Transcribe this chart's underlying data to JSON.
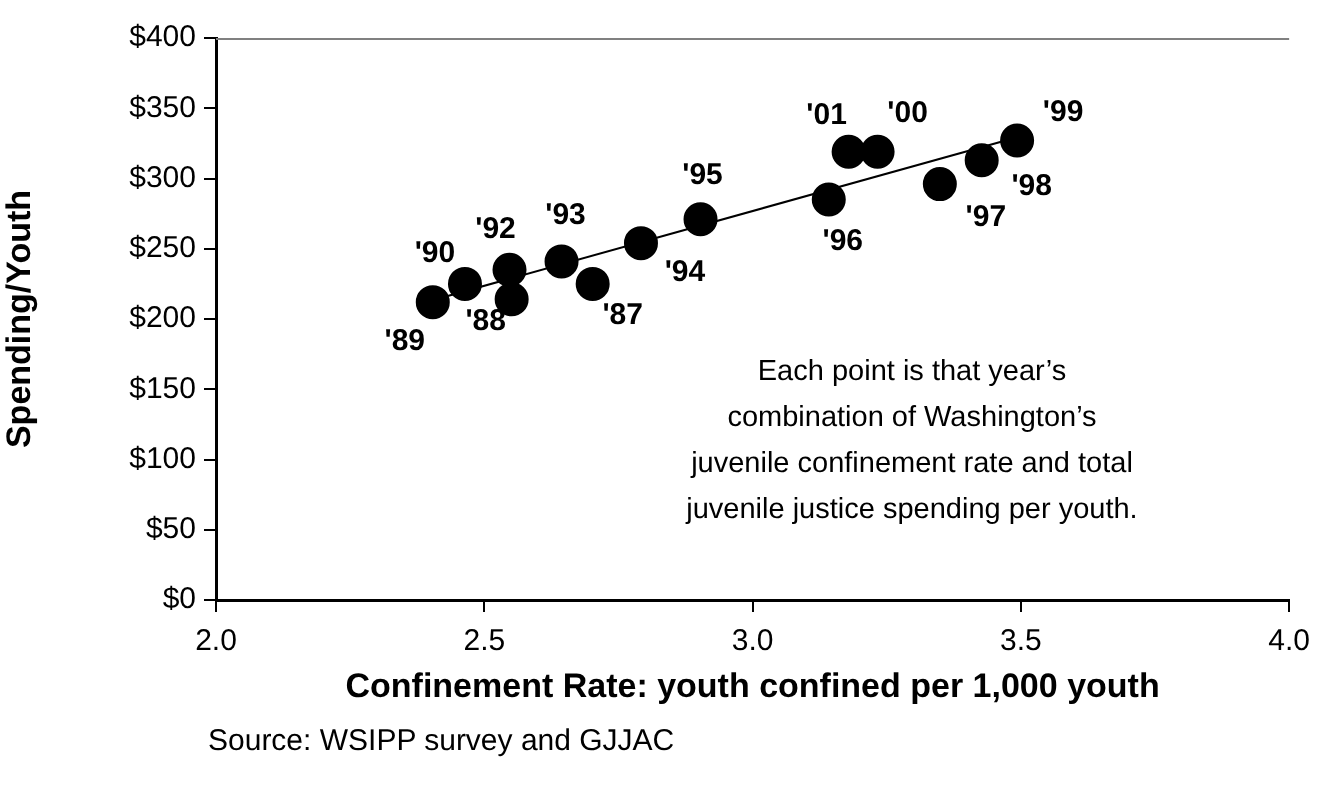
{
  "chart_data": {
    "type": "scatter",
    "xlabel": "Confinement Rate: youth confined per 1,000 youth",
    "ylabel": "Spending/Youth",
    "series": [
      {
        "color": "#000000",
        "marker": "circle",
        "x": [
          2.404,
          2.464,
          2.547,
          2.551,
          2.644,
          2.702,
          2.792,
          2.903,
          3.142,
          3.179,
          3.233,
          3.349,
          3.427,
          3.493
        ],
        "values": [
          212,
          225,
          235,
          214,
          241,
          225,
          254,
          271,
          285,
          319,
          319,
          296,
          313,
          327
        ]
      },
      {
        "type": "line",
        "color": "#000000",
        "marker": "none",
        "x": [
          2.4,
          3.49
        ],
        "values": [
          213,
          329
        ]
      }
    ],
    "xlim": [
      2,
      4
    ],
    "xticks": [
      {
        "value": 2,
        "label": "2.0"
      },
      {
        "value": 2.5,
        "label": "2.5"
      },
      {
        "value": 3,
        "label": "3.0"
      },
      {
        "value": 3.5,
        "label": "3.5"
      },
      {
        "value": 4,
        "label": "4.0"
      }
    ],
    "ylim": [
      0,
      400
    ],
    "yticks": [
      {
        "value": 0,
        "label": "$0"
      },
      {
        "value": 50,
        "label": "$50"
      },
      {
        "value": 100,
        "label": "$100"
      },
      {
        "value": 150,
        "label": "$150"
      },
      {
        "value": 200,
        "label": "$200"
      },
      {
        "value": 250,
        "label": "$250"
      },
      {
        "value": 300,
        "label": "$300"
      },
      {
        "value": 350,
        "label": "$350"
      },
      {
        "value": 400,
        "label": "$400"
      }
    ],
    "grid": false,
    "legend": false,
    "annotations": [
      {
        "text": "'89",
        "x": 2.404,
        "y": 212
      },
      {
        "text": "'90",
        "x": 2.464,
        "y": 225
      },
      {
        "text": "'92",
        "x": 2.547,
        "y": 235
      },
      {
        "text": "'88",
        "x": 2.551,
        "y": 214
      },
      {
        "text": "'93",
        "x": 2.644,
        "y": 241
      },
      {
        "text": "'87",
        "x": 2.702,
        "y": 225
      },
      {
        "text": "'94",
        "x": 2.792,
        "y": 254
      },
      {
        "text": "'95",
        "x": 2.903,
        "y": 271
      },
      {
        "text": "'96",
        "x": 3.142,
        "y": 285
      },
      {
        "text": "'01",
        "x": 3.179,
        "y": 319
      },
      {
        "text": "'00",
        "x": 3.233,
        "y": 319
      },
      {
        "text": "'97",
        "x": 3.349,
        "y": 296
      },
      {
        "text": "'98",
        "x": 3.427,
        "y": 313
      },
      {
        "text": "'99",
        "x": 3.493,
        "y": 327
      },
      "Each point is that year’s combination of Washington’s juvenile confinement rate and total juvenile justice spending per youth.",
      "Source: WSIPP survey and GJJAC"
    ]
  }
}
